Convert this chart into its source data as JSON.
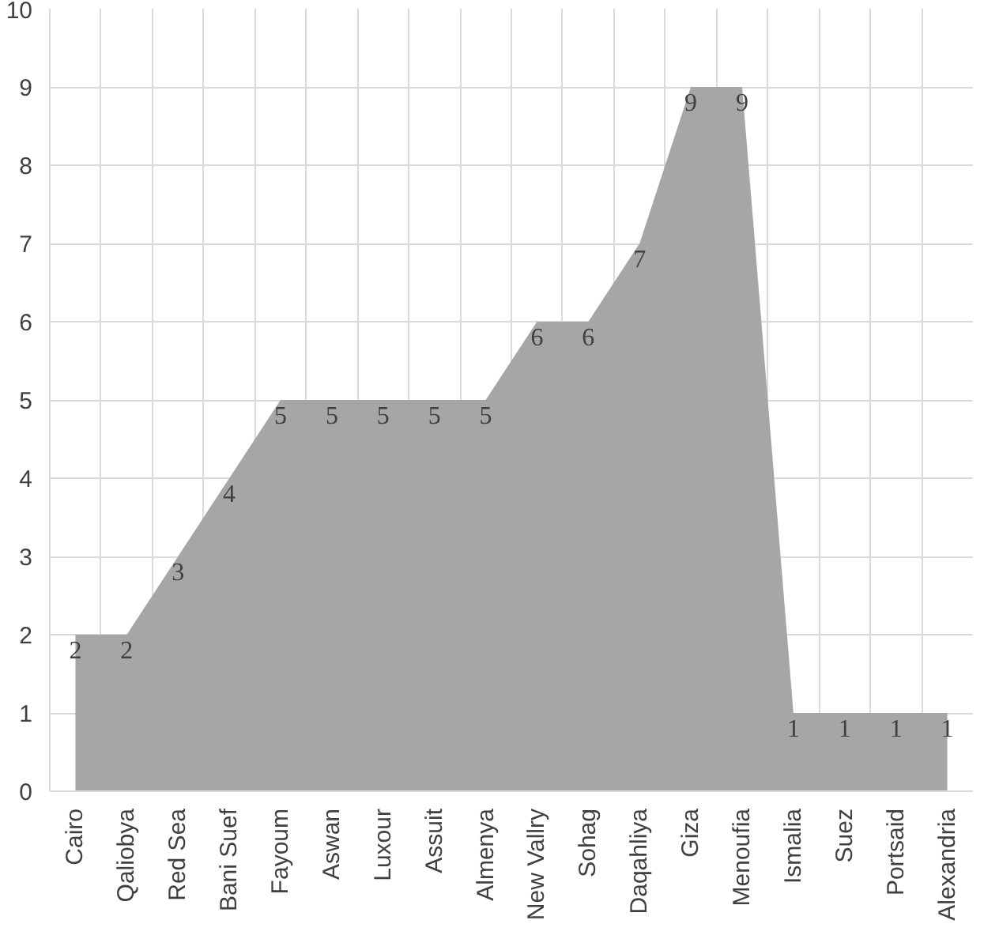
{
  "chart_data": {
    "type": "area",
    "categories": [
      "Cairo",
      "Qaliobya",
      "Red Sea",
      "Bani Suef",
      "Fayoum",
      "Aswan",
      "Luxour",
      "Assuit",
      "Almenya",
      "New Vallry",
      "Sohag",
      "Daqahliya",
      "Giza",
      "Menoufia",
      "Ismalia",
      "Suez",
      "Portsaid",
      "Alexandria"
    ],
    "series": [
      {
        "color": "#a6a6a6",
        "values": [
          2,
          2,
          3,
          4,
          5,
          5,
          5,
          5,
          5,
          6,
          6,
          7,
          9,
          9,
          1,
          1,
          1,
          1
        ]
      }
    ],
    "ylim": [
      0,
      10
    ],
    "yticks": [
      0,
      1,
      2,
      3,
      4,
      5,
      6,
      7,
      8,
      9,
      10
    ],
    "grid": true,
    "data_labels": true
  }
}
